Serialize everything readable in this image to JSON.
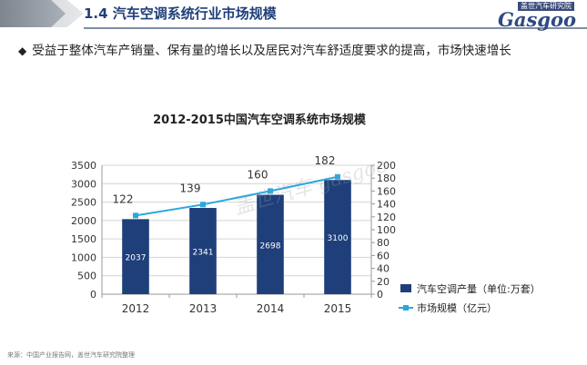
{
  "header": {
    "section_title": "1.4 汽车空调系统行业市场规模",
    "logo_subtitle": "盖世汽车研究院",
    "logo_text": "Gasgoo"
  },
  "bullet": {
    "icon": "diamond-icon",
    "text": "受益于整体汽车产销量、保有量的增长以及居民对汽车舒适度要求的提高，市场快速增长"
  },
  "source_text": "来源：中国产业报告网，盖世汽车研究院整理",
  "watermark": "盖世汽车 gasgoo",
  "chart_data": {
    "type": "bar",
    "title": "2012-2015中国汽车空调系统市场规模",
    "categories": [
      "2012",
      "2013",
      "2014",
      "2015"
    ],
    "ylim_left": [
      0,
      3500
    ],
    "yticks_left": [
      0,
      500,
      1000,
      1500,
      2000,
      2500,
      3000,
      3500
    ],
    "ylim_right": [
      0,
      200
    ],
    "yticks_right": [
      0,
      20,
      40,
      60,
      80,
      100,
      120,
      140,
      160,
      180,
      200
    ],
    "grid": true,
    "legend_position": "right",
    "series": [
      {
        "name": "汽车空调产量（单位:万套）",
        "type": "bar",
        "axis": "left",
        "color": "#1f3f7a",
        "values": [
          2037,
          2341,
          2698,
          3100
        ]
      },
      {
        "name": "市场规模（亿元）",
        "type": "line",
        "axis": "right",
        "color": "#2aa7e0",
        "values": [
          122,
          139,
          160,
          182
        ]
      }
    ]
  }
}
